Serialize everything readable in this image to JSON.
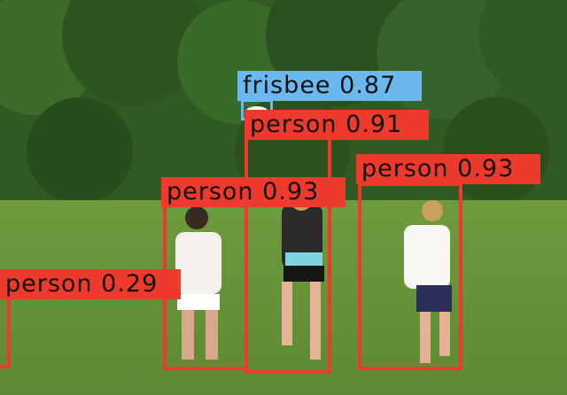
{
  "detections": [
    {
      "id": "frisbee",
      "class": "frisbee",
      "score": "0.87",
      "color": "#6bb8ee"
    },
    {
      "id": "p1",
      "class": "person",
      "score": "0.91",
      "color": "#ee3a2c"
    },
    {
      "id": "p2",
      "class": "person",
      "score": "0.93",
      "color": "#ee3a2c"
    },
    {
      "id": "p3",
      "class": "person",
      "score": "0.93",
      "color": "#ee3a2c"
    },
    {
      "id": "p4",
      "class": "person",
      "score": "0.29",
      "color": "#ee3a2c"
    }
  ]
}
